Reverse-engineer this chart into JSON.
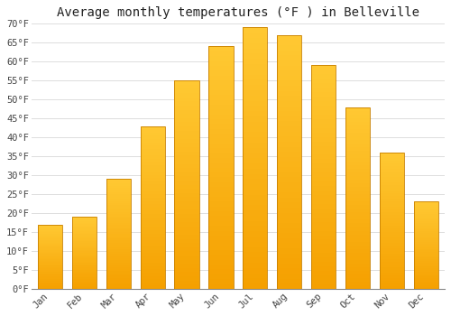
{
  "title": "Average monthly temperatures (°F ) in Belleville",
  "months": [
    "Jan",
    "Feb",
    "Mar",
    "Apr",
    "May",
    "Jun",
    "Jul",
    "Aug",
    "Sep",
    "Oct",
    "Nov",
    "Dec"
  ],
  "values": [
    17,
    19,
    29,
    43,
    55,
    64,
    69,
    67,
    59,
    48,
    36,
    23
  ],
  "bar_color_top": "#FFC933",
  "bar_color_bottom": "#F5A000",
  "bar_edge_color": "#C88000",
  "ylim": [
    0,
    70
  ],
  "yticks": [
    0,
    5,
    10,
    15,
    20,
    25,
    30,
    35,
    40,
    45,
    50,
    55,
    60,
    65,
    70
  ],
  "ytick_labels": [
    "0°F",
    "5°F",
    "10°F",
    "15°F",
    "20°F",
    "25°F",
    "30°F",
    "35°F",
    "40°F",
    "45°F",
    "50°F",
    "55°F",
    "60°F",
    "65°F",
    "70°F"
  ],
  "background_color": "#FFFFFF",
  "plot_bg_color": "#FFFFFF",
  "grid_color": "#DDDDDD",
  "title_fontsize": 10,
  "tick_fontsize": 7.5,
  "font_family": "monospace"
}
